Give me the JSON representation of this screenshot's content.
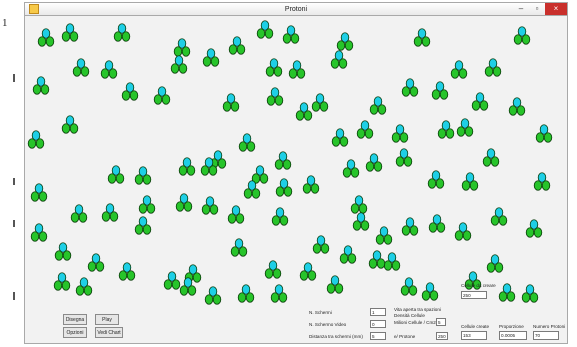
{
  "window": {
    "title": "Protoni",
    "minimize": "–",
    "maximize": "▫",
    "close": "×"
  },
  "colors": {
    "cell_top": "#1ecfe6",
    "cell_bottom": "#27c42a",
    "cell_outline": "#083a08",
    "panel_bg": "#f2f2f2"
  },
  "icons": [
    "app-icon",
    "cell-cluster-icon"
  ],
  "panel": {
    "left_labels": {
      "n_schermi": "N. Schermi",
      "n_schermi_video": "N. Schermo Video",
      "distanza": "Distanza tra schermi (mm)"
    },
    "left_values": {
      "n_schermi": "1",
      "n_schermi_video": "0",
      "distanza": "5"
    },
    "mid_labels": {
      "vita_media": "Vita aperta tra spazioni",
      "densita": "Densità Cellule",
      "cellule_cm2": "Milioni Cellule / Cm2",
      "n_protone": "e/ Protone"
    },
    "mid_values": {
      "top": "",
      "cellule_cm2": "5",
      "n_protone": "250"
    },
    "right_labels": {
      "cellule_da_creare": "Cellule da creare",
      "cellule_create": "Cellule create",
      "proporzione": "Proporzione",
      "numero_protoni": "Numero Protoni"
    },
    "right_values": {
      "cellule_da_creare": "250",
      "cellule_create": "153",
      "proporzione": "0.0005",
      "numero_protoni": "70"
    },
    "buttons": {
      "disegna": "Disegna",
      "play": "Play",
      "opzioni": "Opzioni",
      "vedi_chart": "Vedi Chart"
    }
  }
}
